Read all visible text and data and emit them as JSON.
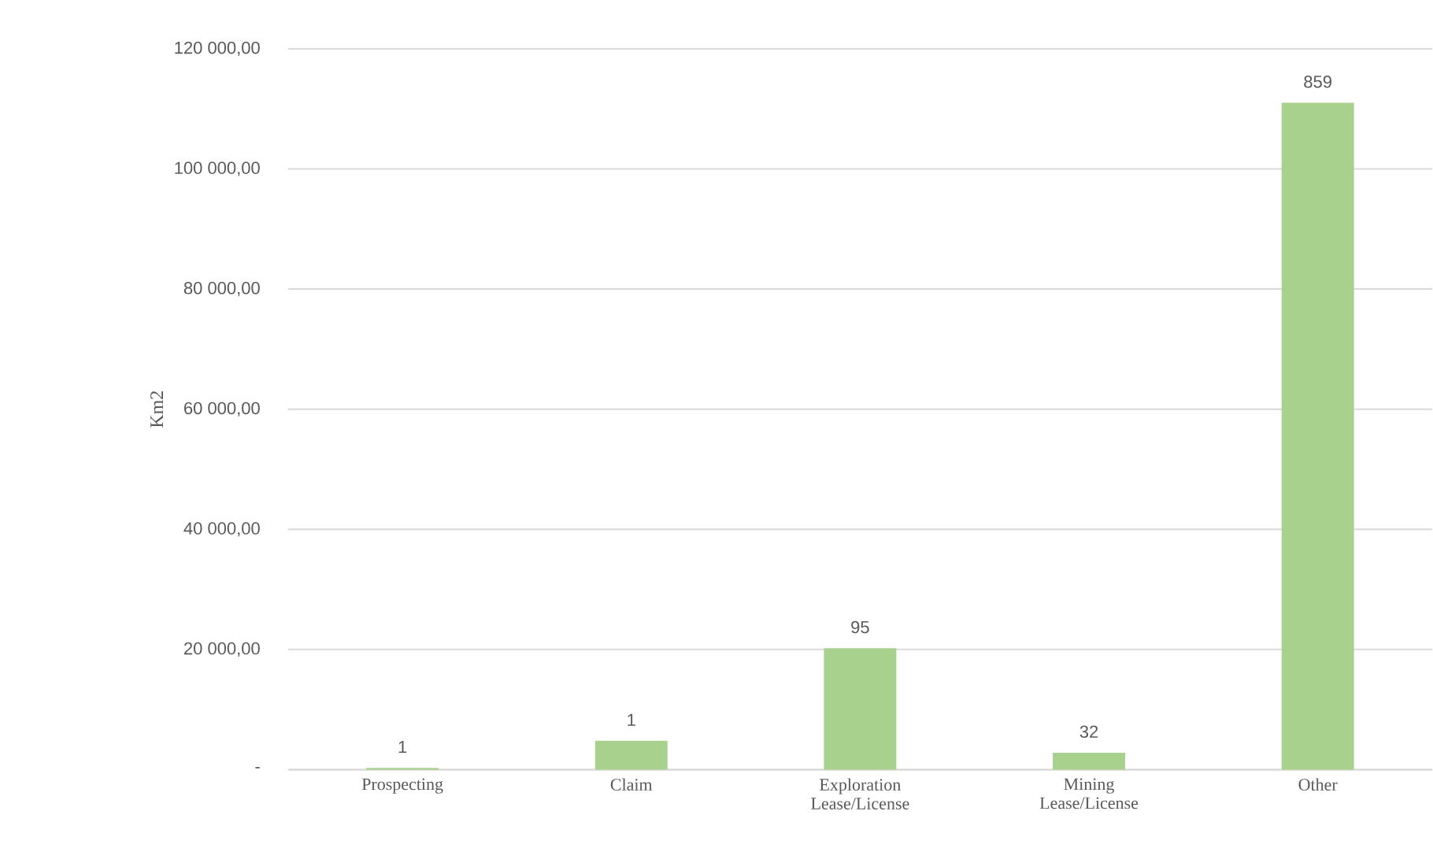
{
  "chart_data": {
    "type": "bar",
    "ylabel": "Km2",
    "categories": [
      "Prospecting",
      "Claim",
      "Exploration Lease/License",
      "Mining Lease/License",
      "Other"
    ],
    "values": [
      300,
      4800,
      20200,
      2800,
      111000
    ],
    "annotations": [
      {
        "text": "1",
        "x": "Prospecting",
        "y": 300
      },
      {
        "text": "1",
        "x": "Claim",
        "y": 4800
      },
      {
        "text": "95",
        "x": "Exploration Lease/License",
        "y": 20200
      },
      {
        "text": "32",
        "x": "Mining Lease/License",
        "y": 2800
      },
      {
        "text": "859",
        "x": "Other",
        "y": 111000
      }
    ],
    "color": "#a9d18e",
    "ylim": [
      0,
      120000
    ],
    "yticks": [
      {
        "value": 0,
        "label": "-"
      },
      {
        "value": 20000,
        "label": "20 000,00"
      },
      {
        "value": 40000,
        "label": "40 000,00"
      },
      {
        "value": 60000,
        "label": "60 000,00"
      },
      {
        "value": 80000,
        "label": "80 000,00"
      },
      {
        "value": 100000,
        "label": "100 000,00"
      },
      {
        "value": 120000,
        "label": "120 000,00"
      }
    ],
    "grid": "y"
  }
}
